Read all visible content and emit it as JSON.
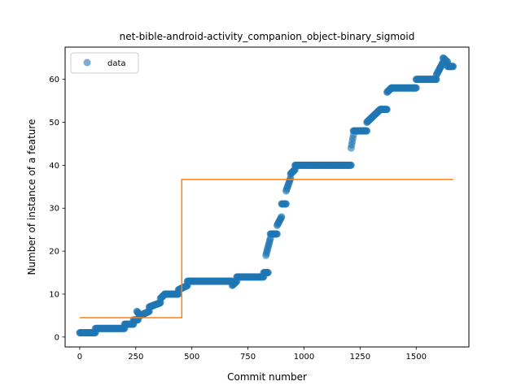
{
  "chart_data": {
    "type": "scatter",
    "title": "net-bible-android-activity_companion_object-binary_sigmoid",
    "xlabel": "Commit number",
    "ylabel": "Number of instance of a feature",
    "xlim": [
      -65,
      1735
    ],
    "ylim": [
      -2.3,
      67.5
    ],
    "xticks": [
      0,
      250,
      500,
      750,
      1000,
      1250,
      1500
    ],
    "yticks": [
      0,
      10,
      20,
      30,
      40,
      50,
      60
    ],
    "grid": false,
    "legend": {
      "placement": "top-left",
      "entries": [
        "data"
      ]
    },
    "colors": {
      "data": "#1f77b4",
      "fit": "#ff7f0e"
    },
    "series": [
      {
        "name": "data",
        "kind": "scatter",
        "segments": [
          [
            0,
            1,
            70,
            1
          ],
          [
            70,
            2,
            200,
            2
          ],
          [
            200,
            3,
            240,
            3
          ],
          [
            240,
            4,
            260,
            4
          ],
          [
            255,
            6,
            270,
            5
          ],
          [
            270,
            5,
            310,
            6
          ],
          [
            310,
            7,
            360,
            8
          ],
          [
            360,
            9,
            380,
            10
          ],
          [
            380,
            10,
            440,
            10
          ],
          [
            440,
            11,
            480,
            12
          ],
          [
            480,
            13,
            680,
            13
          ],
          [
            680,
            12,
            700,
            13
          ],
          [
            700,
            14,
            820,
            14
          ],
          [
            820,
            15,
            840,
            15
          ],
          [
            830,
            19,
            850,
            23
          ],
          [
            850,
            24,
            880,
            24
          ],
          [
            880,
            26,
            900,
            28
          ],
          [
            900,
            31,
            920,
            31
          ],
          [
            920,
            34,
            940,
            37
          ],
          [
            940,
            38,
            960,
            39
          ],
          [
            960,
            40,
            1210,
            40
          ],
          [
            1210,
            44,
            1220,
            47
          ],
          [
            1220,
            48,
            1280,
            48
          ],
          [
            1280,
            50,
            1340,
            53
          ],
          [
            1340,
            53,
            1370,
            53
          ],
          [
            1370,
            57,
            1390,
            58
          ],
          [
            1390,
            58,
            1500,
            58
          ],
          [
            1500,
            60,
            1590,
            60
          ],
          [
            1590,
            61,
            1620,
            64
          ],
          [
            1620,
            65,
            1640,
            64
          ],
          [
            1640,
            63,
            1665,
            63
          ]
        ]
      },
      {
        "name": "",
        "kind": "line",
        "x": [
          0,
          455,
          455,
          1665
        ],
        "y": [
          4.5,
          4.5,
          36.7,
          36.7
        ]
      }
    ]
  }
}
